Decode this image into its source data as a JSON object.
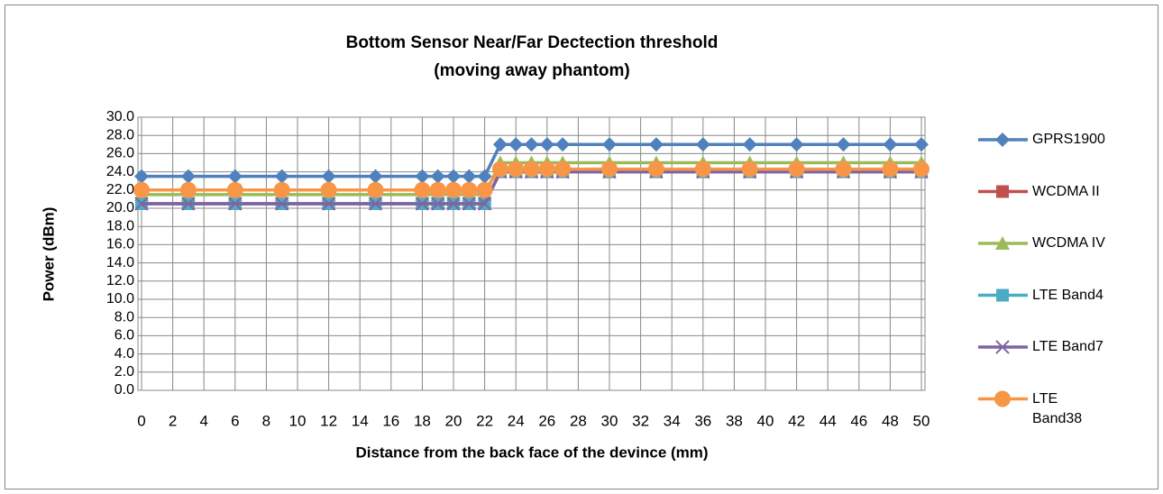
{
  "chart_data": {
    "type": "line",
    "title": "Bottom Sensor Near/Far Dectection threshold",
    "subtitle": "(moving away phantom)",
    "x_label": "Distance from the back face of the devince (mm)",
    "y_label": "Power (dBm)",
    "x": [
      0,
      3,
      6,
      9,
      12,
      15,
      18,
      19,
      20,
      21,
      22,
      23,
      24,
      25,
      26,
      27,
      30,
      33,
      36,
      39,
      42,
      45,
      48,
      50
    ],
    "series": [
      {
        "name": "GPRS1900",
        "color": "#4f81bd",
        "marker": "diamond",
        "values": [
          23.5,
          23.5,
          23.5,
          23.5,
          23.5,
          23.5,
          23.5,
          23.5,
          23.5,
          23.5,
          23.5,
          27,
          27,
          27,
          27,
          27,
          27,
          27,
          27,
          27,
          27,
          27,
          27,
          27
        ]
      },
      {
        "name": "WCDMA II",
        "color": "#c0504d",
        "marker": "square",
        "values": [
          20.5,
          20.5,
          20.5,
          20.5,
          20.5,
          20.5,
          20.5,
          20.5,
          20.5,
          20.5,
          20.5,
          24,
          24,
          24,
          24,
          24,
          24,
          24,
          24,
          24,
          24,
          24,
          24,
          24
        ]
      },
      {
        "name": "WCDMA IV",
        "color": "#9bbb59",
        "marker": "triangle",
        "values": [
          21.5,
          21.5,
          21.5,
          21.5,
          21.5,
          21.5,
          21.5,
          21.5,
          21.5,
          21.5,
          21.5,
          25,
          25,
          25,
          25,
          25,
          25,
          25,
          25,
          25,
          25,
          25,
          25,
          25
        ]
      },
      {
        "name": "LTE Band4",
        "color": "#4bacc6",
        "marker": "square",
        "values": [
          20.5,
          20.5,
          20.5,
          20.5,
          20.5,
          20.5,
          20.5,
          20.5,
          20.5,
          20.5,
          20.5,
          24,
          24,
          24,
          24,
          24,
          24,
          24,
          24,
          24,
          24,
          24,
          24,
          24
        ]
      },
      {
        "name": "LTE Band7",
        "color": "#8064a2",
        "marker": "x",
        "values": [
          20.5,
          20.5,
          20.5,
          20.5,
          20.5,
          20.5,
          20.5,
          20.5,
          20.5,
          20.5,
          20.5,
          24,
          24,
          24,
          24,
          24,
          24,
          24,
          24,
          24,
          24,
          24,
          24,
          24
        ]
      },
      {
        "name": "LTE Band38",
        "color": "#f79646",
        "marker": "circle",
        "values": [
          22,
          22,
          22,
          22,
          22,
          22,
          22,
          22,
          22,
          22,
          22,
          24.3,
          24.3,
          24.3,
          24.3,
          24.3,
          24.3,
          24.3,
          24.3,
          24.3,
          24.3,
          24.3,
          24.3,
          24.3
        ]
      }
    ],
    "xlim": [
      0,
      50
    ],
    "xticks": [
      0,
      2,
      4,
      6,
      8,
      10,
      12,
      14,
      16,
      18,
      20,
      22,
      24,
      26,
      28,
      30,
      32,
      34,
      36,
      38,
      40,
      42,
      44,
      46,
      48,
      50
    ],
    "ylim": [
      0,
      30
    ],
    "yticks": [
      {
        "value": 0,
        "label": "0.0"
      },
      {
        "value": 2,
        "label": "2.0"
      },
      {
        "value": 4,
        "label": "4.0"
      },
      {
        "value": 6,
        "label": "6.0"
      },
      {
        "value": 8,
        "label": "8.0"
      },
      {
        "value": 10,
        "label": "10.0"
      },
      {
        "value": 12,
        "label": "12.0"
      },
      {
        "value": 14,
        "label": "14.0"
      },
      {
        "value": 16,
        "label": "16.0"
      },
      {
        "value": 18,
        "label": "18.0"
      },
      {
        "value": 20,
        "label": "20.0"
      },
      {
        "value": 22,
        "label": "22.0"
      },
      {
        "value": 24,
        "label": "24.0"
      },
      {
        "value": 26,
        "label": "26.0"
      },
      {
        "value": 28,
        "label": "28.0"
      },
      {
        "value": 30,
        "label": "30.0"
      }
    ],
    "grid": true,
    "legend": "right"
  }
}
